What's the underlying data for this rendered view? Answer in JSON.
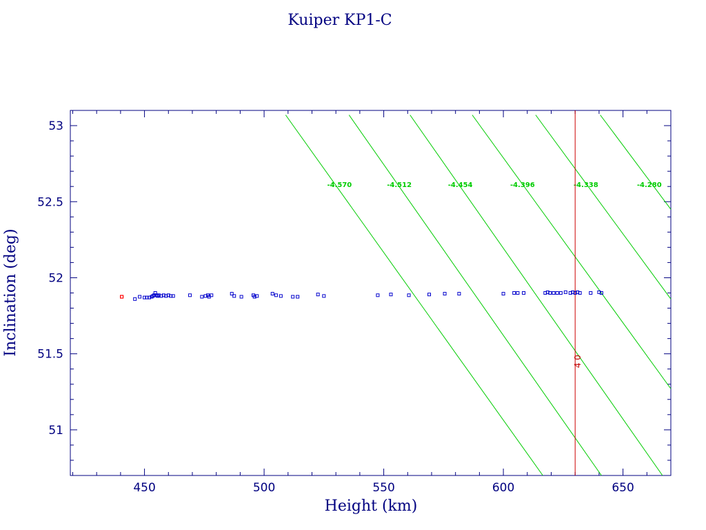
{
  "chart_data": {
    "type": "scatter",
    "title": "Kuiper KP1-C",
    "xlabel": "Height (km)",
    "ylabel": "Inclination (deg)",
    "xlim": [
      419,
      670
    ],
    "ylim": [
      50.7,
      53.1
    ],
    "xticks": [
      450,
      500,
      550,
      600,
      650
    ],
    "yticks": [
      51,
      51.5,
      52,
      52.5,
      53
    ],
    "xtick_labels": [
      "450",
      "500",
      "550",
      "600",
      "650"
    ],
    "ytick_labels": [
      "51",
      "51.5",
      "52",
      "52.5",
      "53"
    ],
    "colors": {
      "frame": "#000080",
      "points": "#0000cc",
      "highlight": "#ff0000",
      "contours": "#00cc00",
      "vline": "#cc0000"
    },
    "highlight_point": {
      "x": 440.5,
      "y": 51.875
    },
    "points": [
      {
        "x": 446.0,
        "y": 51.86
      },
      {
        "x": 448.0,
        "y": 51.875
      },
      {
        "x": 450.0,
        "y": 51.87
      },
      {
        "x": 451.0,
        "y": 51.87
      },
      {
        "x": 452.0,
        "y": 51.87
      },
      {
        "x": 453.0,
        "y": 51.875
      },
      {
        "x": 453.5,
        "y": 51.88
      },
      {
        "x": 454.0,
        "y": 51.885
      },
      {
        "x": 454.5,
        "y": 51.9
      },
      {
        "x": 455.0,
        "y": 51.885
      },
      {
        "x": 455.5,
        "y": 51.88
      },
      {
        "x": 456.0,
        "y": 51.885
      },
      {
        "x": 457.0,
        "y": 51.88
      },
      {
        "x": 458.0,
        "y": 51.885
      },
      {
        "x": 459.0,
        "y": 51.88
      },
      {
        "x": 460.0,
        "y": 51.885
      },
      {
        "x": 461.0,
        "y": 51.88
      },
      {
        "x": 462.0,
        "y": 51.88
      },
      {
        "x": 469.0,
        "y": 51.885
      },
      {
        "x": 474.0,
        "y": 51.875
      },
      {
        "x": 475.5,
        "y": 51.88
      },
      {
        "x": 476.5,
        "y": 51.885
      },
      {
        "x": 477.0,
        "y": 51.875
      },
      {
        "x": 478.0,
        "y": 51.885
      },
      {
        "x": 486.5,
        "y": 51.895
      },
      {
        "x": 487.5,
        "y": 51.88
      },
      {
        "x": 490.5,
        "y": 51.875
      },
      {
        "x": 495.5,
        "y": 51.885
      },
      {
        "x": 496.0,
        "y": 51.875
      },
      {
        "x": 497.0,
        "y": 51.88
      },
      {
        "x": 503.5,
        "y": 51.895
      },
      {
        "x": 505.0,
        "y": 51.885
      },
      {
        "x": 507.0,
        "y": 51.88
      },
      {
        "x": 512.0,
        "y": 51.875
      },
      {
        "x": 514.0,
        "y": 51.875
      },
      {
        "x": 522.5,
        "y": 51.89
      },
      {
        "x": 525.0,
        "y": 51.88
      },
      {
        "x": 547.5,
        "y": 51.885
      },
      {
        "x": 553.0,
        "y": 51.89
      },
      {
        "x": 560.5,
        "y": 51.885
      },
      {
        "x": 569.0,
        "y": 51.89
      },
      {
        "x": 575.5,
        "y": 51.895
      },
      {
        "x": 581.5,
        "y": 51.895
      },
      {
        "x": 600.0,
        "y": 51.895
      },
      {
        "x": 604.5,
        "y": 51.9
      },
      {
        "x": 606.0,
        "y": 51.9
      },
      {
        "x": 608.5,
        "y": 51.9
      },
      {
        "x": 617.5,
        "y": 51.9
      },
      {
        "x": 618.5,
        "y": 51.905
      },
      {
        "x": 619.5,
        "y": 51.9
      },
      {
        "x": 621.0,
        "y": 51.9
      },
      {
        "x": 622.5,
        "y": 51.9
      },
      {
        "x": 624.0,
        "y": 51.9
      },
      {
        "x": 626.0,
        "y": 51.905
      },
      {
        "x": 628.0,
        "y": 51.9
      },
      {
        "x": 629.0,
        "y": 51.905
      },
      {
        "x": 630.0,
        "y": 51.9
      },
      {
        "x": 631.0,
        "y": 51.905
      },
      {
        "x": 632.0,
        "y": 51.9
      },
      {
        "x": 636.5,
        "y": 51.9
      },
      {
        "x": 640.0,
        "y": 51.905
      },
      {
        "x": 641.0,
        "y": 51.9
      }
    ],
    "contours": [
      {
        "label": "-4.570",
        "p1": {
          "x": 509.0,
          "y": 53.07
        },
        "p2": {
          "x": 616.5,
          "y": 50.7
        },
        "label_at": {
          "x": 531.5,
          "y": 52.615
        }
      },
      {
        "label": "-4.512",
        "p1": {
          "x": 535.5,
          "y": 53.07
        },
        "p2": {
          "x": 641.0,
          "y": 50.7
        },
        "label_at": {
          "x": 556.5,
          "y": 52.615
        }
      },
      {
        "label": "-4.454",
        "p1": {
          "x": 561.0,
          "y": 53.07
        },
        "p2": {
          "x": 666.5,
          "y": 50.7
        },
        "label_at": {
          "x": 582.0,
          "y": 52.615
        }
      },
      {
        "label": "-4.396",
        "p1": {
          "x": 587.0,
          "y": 53.07
        },
        "p2": {
          "x": 670.0,
          "y": 51.27
        },
        "label_at": {
          "x": 608.0,
          "y": 52.615
        }
      },
      {
        "label": "-4.338",
        "p1": {
          "x": 613.5,
          "y": 53.07
        },
        "p2": {
          "x": 670.0,
          "y": 51.86
        },
        "label_at": {
          "x": 634.5,
          "y": 52.615
        }
      },
      {
        "label": "-4.280",
        "p1": {
          "x": 640.5,
          "y": 53.07
        },
        "p2": {
          "x": 670.0,
          "y": 52.45
        },
        "label_at": {
          "x": 661.0,
          "y": 52.615
        }
      }
    ],
    "vline": {
      "x": 630.0,
      "label": "4 0",
      "label_at_y": 51.45
    }
  }
}
